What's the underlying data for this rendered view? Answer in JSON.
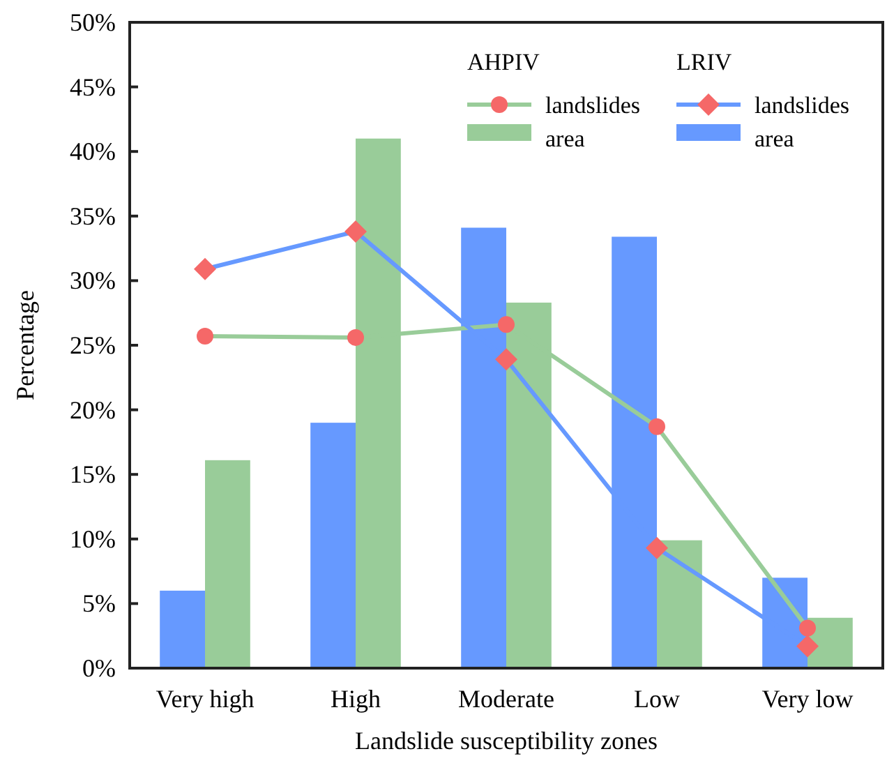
{
  "chart_data": {
    "type": "bar",
    "xlabel": "Landslide susceptibility zones",
    "ylabel": "Percentage",
    "categories": [
      "Very high",
      "High",
      "Moderate",
      "Low",
      "Very low"
    ],
    "series": [
      {
        "name": "area",
        "color": "#6699ff",
        "values": [
          6.0,
          19.0,
          34.1,
          33.4,
          7.0
        ]
      },
      {
        "name": "area",
        "color": "#99cc99",
        "values": [
          16.1,
          41.0,
          28.3,
          9.9,
          3.9
        ]
      },
      {
        "name": "landslides",
        "type": "line",
        "color": "#99cc99",
        "marker": "circle",
        "values": [
          25.7,
          25.6,
          26.6,
          18.7,
          3.1
        ]
      },
      {
        "name": "landslides",
        "type": "line",
        "color": "#6699ff",
        "marker": "diamond",
        "values": [
          30.9,
          33.8,
          23.9,
          9.3,
          1.7
        ]
      }
    ],
    "annotations": [
      "AHPIV",
      "LRIV"
    ],
    "ylim": [
      0,
      50
    ],
    "yticks": [
      {
        "value": 0,
        "label": "0%"
      },
      {
        "value": 5,
        "label": "5%"
      },
      {
        "value": 10,
        "label": "10%"
      },
      {
        "value": 15,
        "label": "15%"
      },
      {
        "value": 20,
        "label": "20%"
      },
      {
        "value": 25,
        "label": "25%"
      },
      {
        "value": 30,
        "label": "30%"
      },
      {
        "value": 35,
        "label": "35%"
      },
      {
        "value": 40,
        "label": "40%"
      },
      {
        "value": 45,
        "label": "45%"
      },
      {
        "value": 50,
        "label": "50%"
      }
    ],
    "legend": "top right",
    "line_style": "solid"
  }
}
